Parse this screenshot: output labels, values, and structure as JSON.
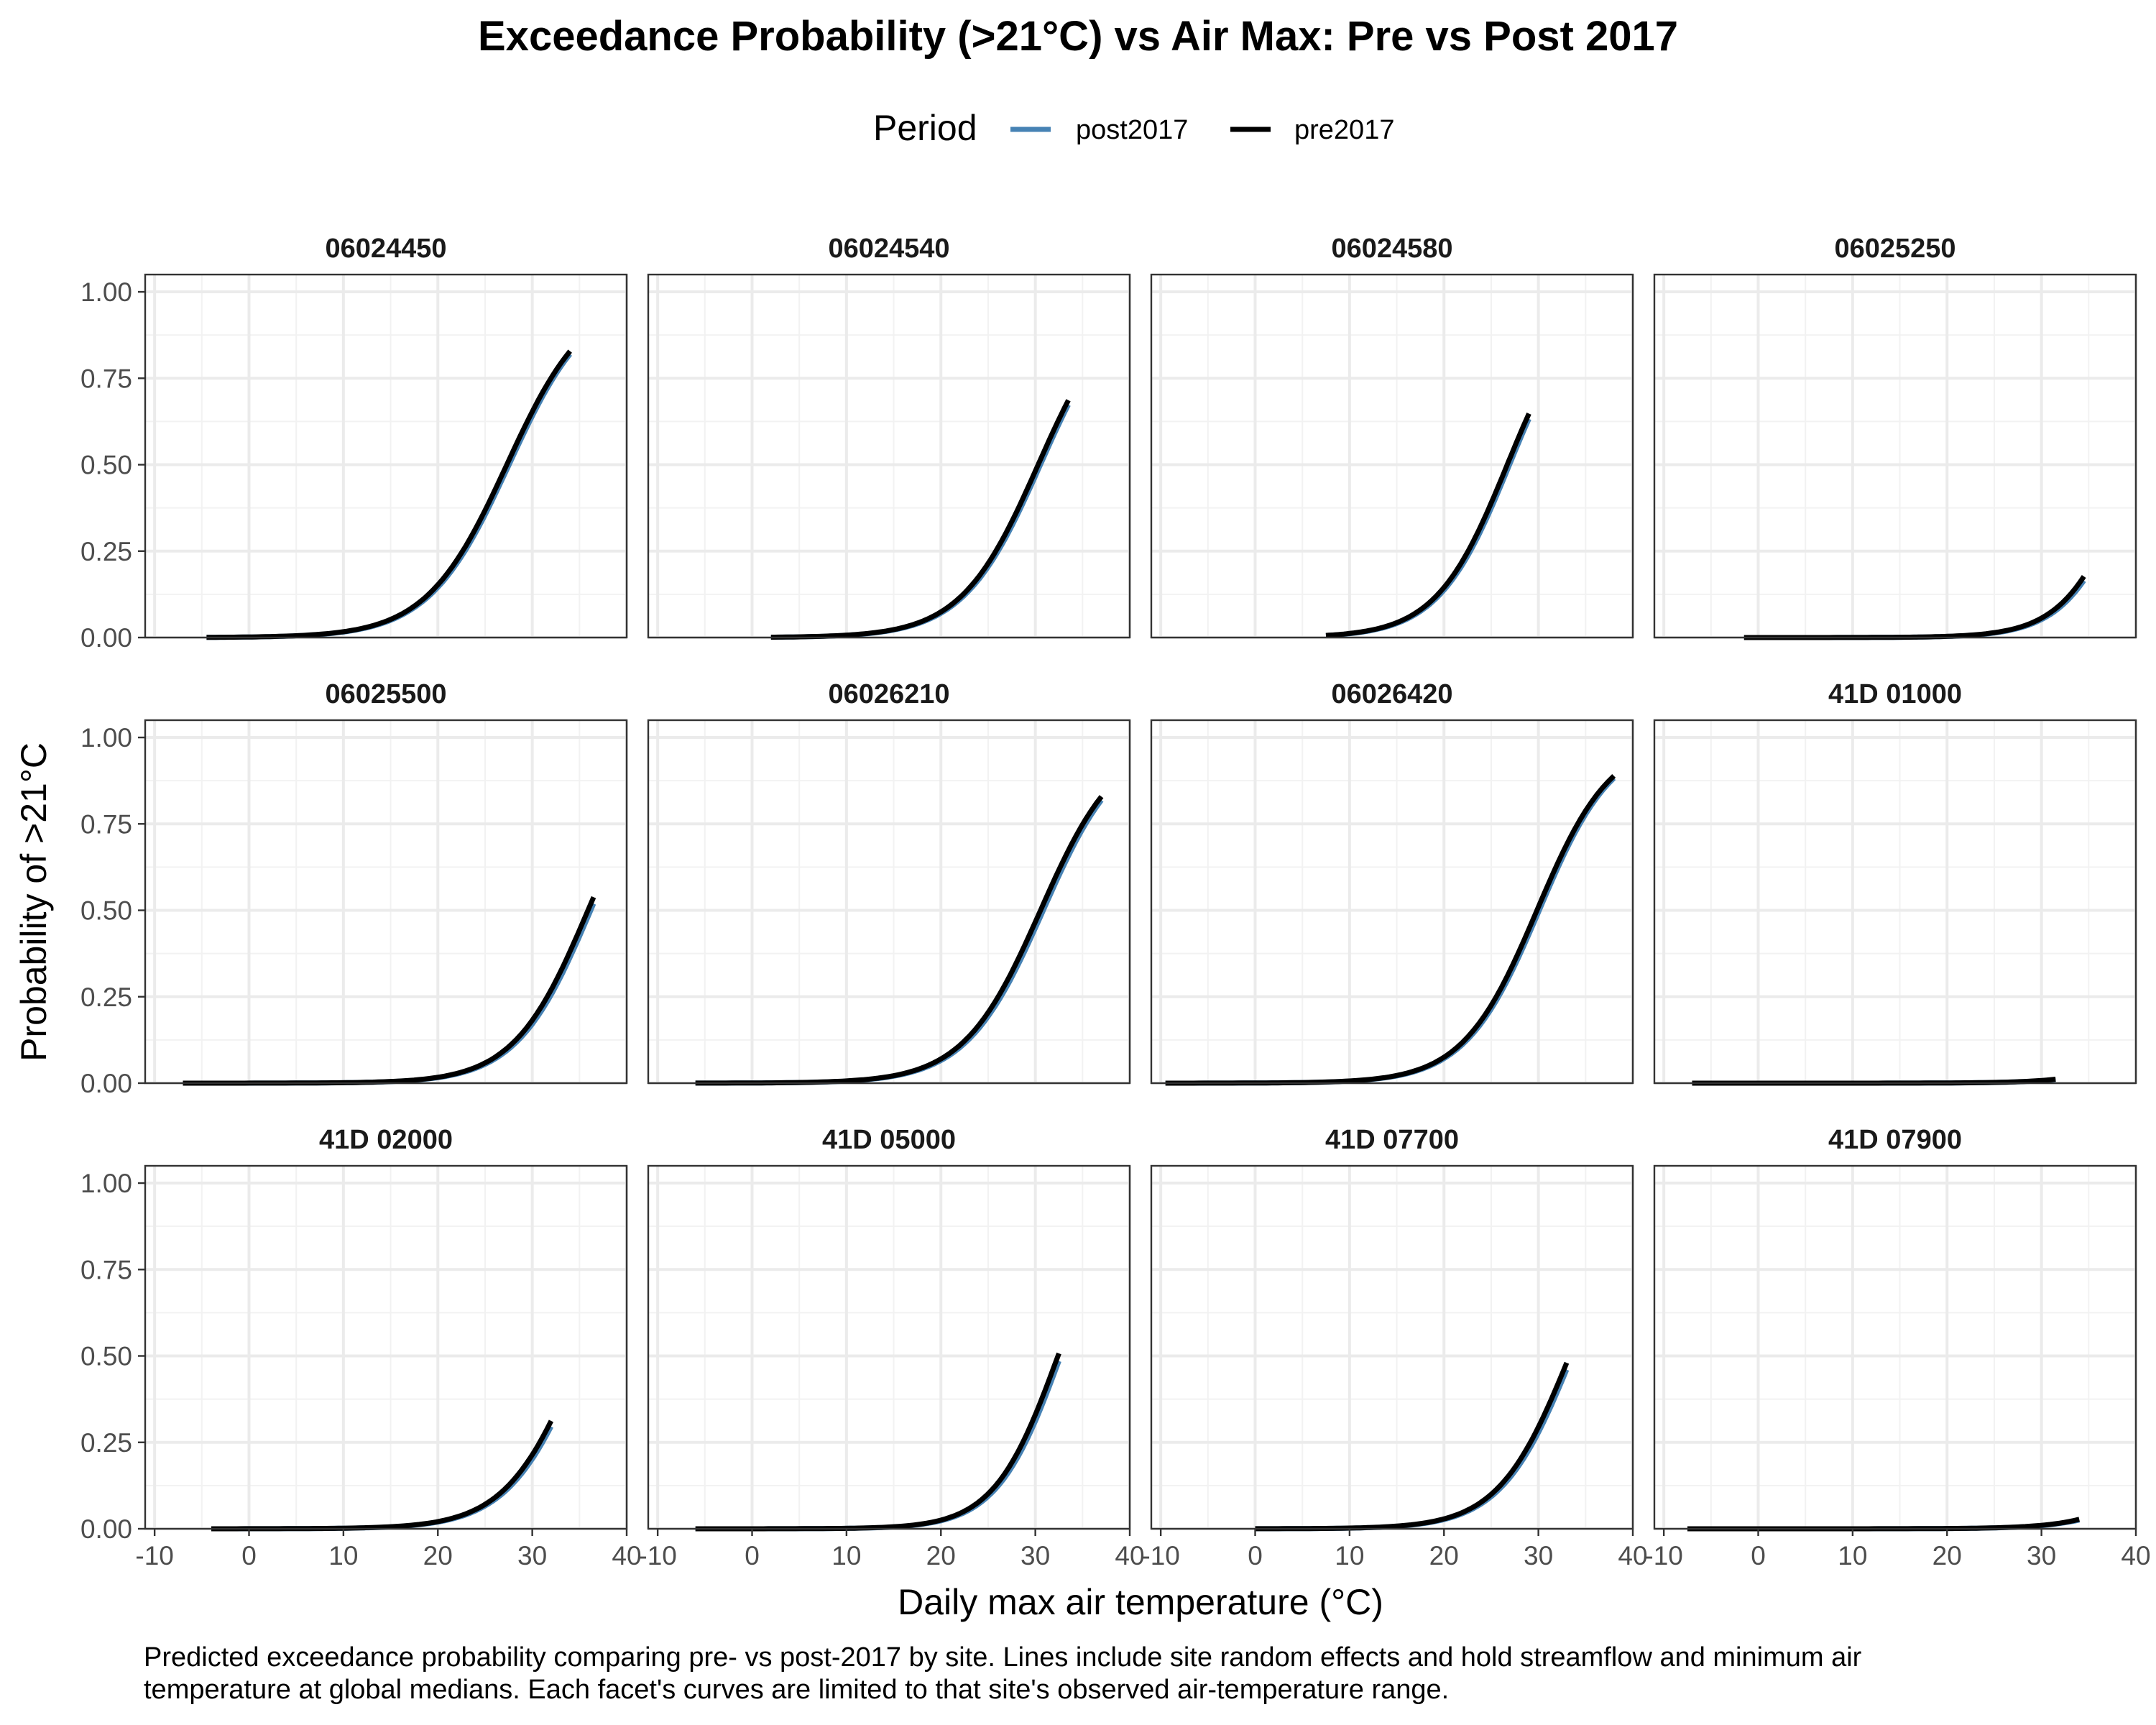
{
  "title": "Exceedance Probability (>21°C) vs Air Max: Pre vs Post 2017",
  "legend": {
    "title": "Period",
    "items": [
      {
        "label": "post2017",
        "color": "#4682b4"
      },
      {
        "label": "pre2017",
        "color": "#000000"
      }
    ]
  },
  "caption": [
    "Predicted exceedance probability comparing pre- vs post-2017 by site. Lines include site random effects and hold streamflow and minimum air",
    "temperature at global medians. Each facet's curves are limited to that site's observed air-temperature range."
  ],
  "chart_data": {
    "type": "line",
    "title": "Exceedance Probability (>21°C) vs Air Max: Pre vs Post 2017",
    "xlabel": "Daily max air temperature (°C)",
    "ylabel": "Probability of >21°C",
    "xlim": [
      -11,
      40
    ],
    "ylim": [
      0,
      1.05
    ],
    "x_ticks": [
      -10,
      0,
      10,
      20,
      30,
      40
    ],
    "x_tick_labels": [
      "-10",
      "0",
      "10",
      "20",
      "30",
      "40"
    ],
    "y_ticks": [
      0,
      0.25,
      0.5,
      0.75,
      1.0
    ],
    "y_tick_labels": [
      "0.00",
      "0.25",
      "0.50",
      "0.75",
      "1.00"
    ],
    "grid": true,
    "legend_position": "top",
    "series_colors": {
      "post2017": "#4682b4",
      "pre2017": "#000000"
    },
    "facets": [
      {
        "site": "06024450",
        "x_range": [
          -4.5,
          34
        ],
        "pre2017": {
          "x50": 27.3,
          "k": 0.235
        },
        "post2017": {
          "x50": 27.55,
          "k": 0.235
        }
      },
      {
        "site": "06024540",
        "x_range": [
          2,
          33.5
        ],
        "pre2017": {
          "x50": 30.3,
          "k": 0.245
        },
        "post2017": {
          "x50": 30.55,
          "k": 0.245
        }
      },
      {
        "site": "06024580",
        "x_range": [
          7.5,
          29
        ],
        "pre2017": {
          "x50": 26.7,
          "k": 0.265
        },
        "post2017": {
          "x50": 26.95,
          "k": 0.265
        }
      },
      {
        "site": "06025250",
        "x_range": [
          -1.5,
          34.5
        ],
        "pre2017": {
          "x50": 39.9,
          "k": 0.285
        },
        "post2017": {
          "x50": 40.2,
          "k": 0.285
        }
      },
      {
        "site": "06025500",
        "x_range": [
          -7,
          36.5
        ],
        "pre2017": {
          "x50": 35.9,
          "k": 0.255
        },
        "post2017": {
          "x50": 36.2,
          "k": 0.255
        }
      },
      {
        "site": "06026210",
        "x_range": [
          -6,
          37
        ],
        "pre2017": {
          "x50": 30.55,
          "k": 0.245
        },
        "post2017": {
          "x50": 30.85,
          "k": 0.245
        }
      },
      {
        "site": "06026420",
        "x_range": [
          -9.5,
          38
        ],
        "pre2017": {
          "x50": 29.85,
          "k": 0.255
        },
        "post2017": {
          "x50": 30.1,
          "k": 0.255
        }
      },
      {
        "site": "41D 01000",
        "x_range": [
          -7,
          31.5
        ],
        "pre2017": {
          "x50": 49,
          "k": 0.255
        },
        "post2017": {
          "x50": 49.3,
          "k": 0.255
        }
      },
      {
        "site": "41D 02000",
        "x_range": [
          -4,
          32
        ],
        "pre2017": {
          "x50": 35.1,
          "k": 0.255
        },
        "post2017": {
          "x50": 35.4,
          "k": 0.255
        }
      },
      {
        "site": "41D 05000",
        "x_range": [
          -6,
          32.5
        ],
        "pre2017": {
          "x50": 32.4,
          "k": 0.295
        },
        "post2017": {
          "x50": 32.7,
          "k": 0.295
        }
      },
      {
        "site": "41D 07700",
        "x_range": [
          0,
          33
        ],
        "pre2017": {
          "x50": 33.3,
          "k": 0.265
        },
        "post2017": {
          "x50": 33.6,
          "k": 0.265
        }
      },
      {
        "site": "41D 07900",
        "x_range": [
          -7.5,
          34
        ],
        "pre2017": {
          "x50": 48,
          "k": 0.255
        },
        "post2017": {
          "x50": 48.3,
          "k": 0.255
        }
      }
    ]
  }
}
